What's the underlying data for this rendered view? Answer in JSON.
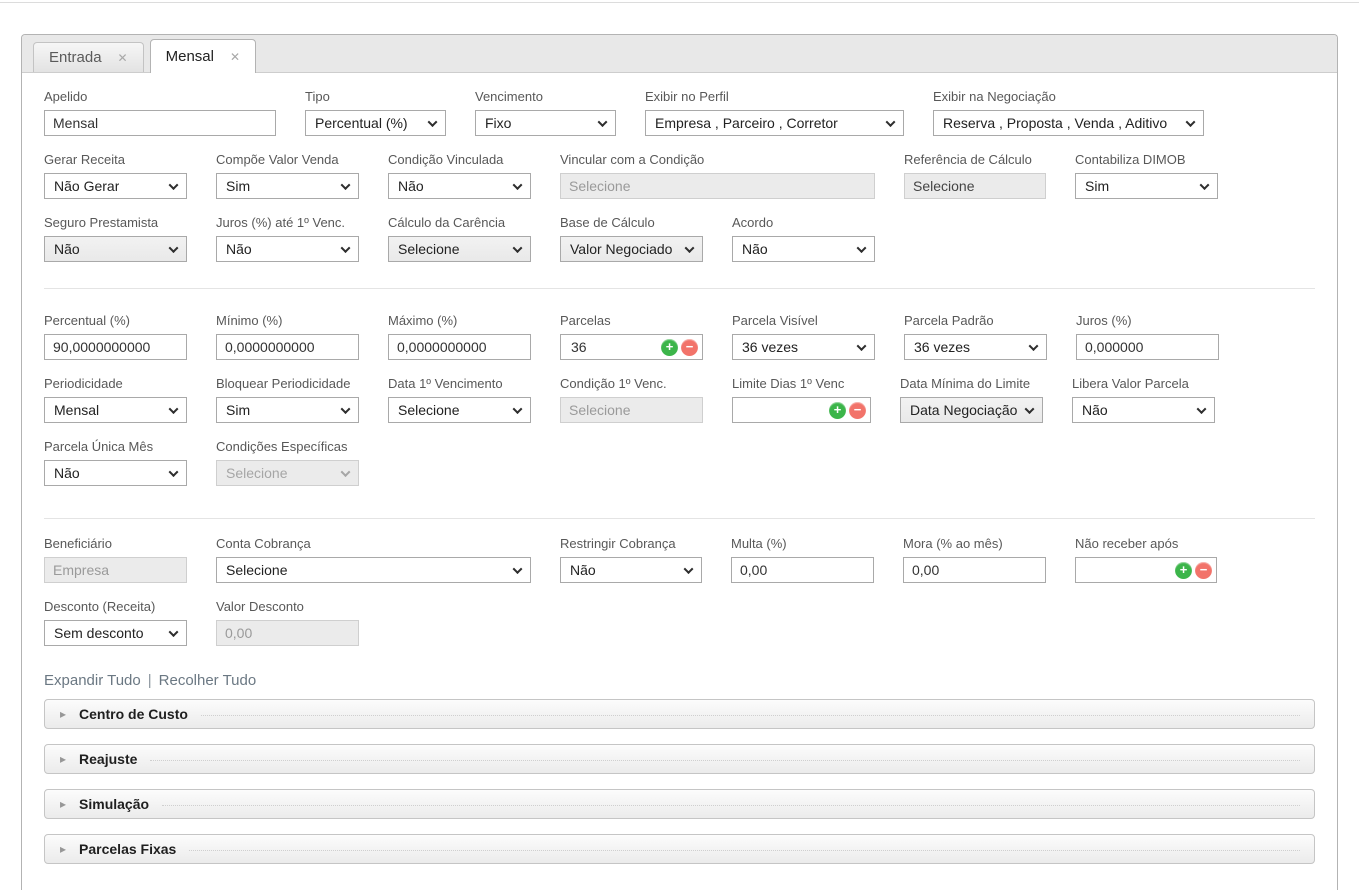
{
  "tabs": {
    "close_glyph": "✕",
    "items": [
      {
        "label": "Entrada"
      },
      {
        "label": "Mensal"
      }
    ]
  },
  "form": {
    "rows": [
      {
        "fields": [
          {
            "label": "Apelido",
            "value": "Mensal"
          },
          {
            "label": "Tipo",
            "value": "Percentual (%)"
          },
          {
            "label": "Vencimento",
            "value": "Fixo"
          },
          {
            "label": "Exibir no Perfil",
            "value": "Empresa , Parceiro , Corretor"
          },
          {
            "label": "Exibir na Negociação",
            "value": "Reserva , Proposta , Venda , Aditivo"
          }
        ]
      },
      {
        "fields": [
          {
            "label": "Gerar Receita",
            "value": "Não Gerar"
          },
          {
            "label": "Compõe Valor Venda",
            "value": "Sim"
          },
          {
            "label": "Condição Vinculada",
            "value": "Não"
          },
          {
            "label": "Vincular com a Condição",
            "value": "Selecione"
          },
          {
            "label": "Referência de Cálculo",
            "value": "Selecione"
          },
          {
            "label": "Contabiliza DIMOB",
            "value": "Sim"
          }
        ]
      },
      {
        "fields": [
          {
            "label": "Seguro Prestamista",
            "value": "Não"
          },
          {
            "label": "Juros (%) até 1º Venc.",
            "value": "Não"
          },
          {
            "label": "Cálculo da Carência",
            "value": "Selecione"
          },
          {
            "label": "Base de Cálculo",
            "value": "Valor Negociado"
          },
          {
            "label": "Acordo",
            "value": "Não"
          }
        ]
      },
      {
        "fields": [
          {
            "label": "Percentual (%)",
            "value": "90,0000000000"
          },
          {
            "label": "Mínimo (%)",
            "value": "0,0000000000"
          },
          {
            "label": "Máximo (%)",
            "value": "0,0000000000"
          },
          {
            "label": "Parcelas",
            "value": "36"
          },
          {
            "label": "Parcela Visível",
            "value": "36 vezes"
          },
          {
            "label": "Parcela Padrão",
            "value": "36 vezes"
          },
          {
            "label": "Juros (%)",
            "value": "0,000000"
          }
        ]
      },
      {
        "fields": [
          {
            "label": "Periodicidade",
            "value": "Mensal"
          },
          {
            "label": "Bloquear Periodicidade",
            "value": "Sim"
          },
          {
            "label": "Data 1º Vencimento",
            "value": "Selecione"
          },
          {
            "label": "Condição 1º Venc.",
            "value": "Selecione"
          },
          {
            "label": "Limite Dias 1º Venc",
            "value": ""
          },
          {
            "label": "Data Mínima do Limite",
            "value": "Data Negociação"
          },
          {
            "label": "Libera Valor Parcela",
            "value": "Não"
          }
        ]
      },
      {
        "fields": [
          {
            "label": "Parcela Única Mês",
            "value": "Não"
          },
          {
            "label": "Condições Específicas",
            "value": "Selecione"
          }
        ]
      },
      {
        "fields": [
          {
            "label": "Beneficiário",
            "value": "Empresa"
          },
          {
            "label": "Conta Cobrança",
            "value": "Selecione"
          },
          {
            "label": "Restringir Cobrança",
            "value": "Não"
          },
          {
            "label": "Multa (%)",
            "value": "0,00"
          },
          {
            "label": "Mora (% ao mês)",
            "value": "0,00"
          },
          {
            "label": "Não receber após",
            "value": ""
          }
        ]
      },
      {
        "fields": [
          {
            "label": "Desconto (Receita)",
            "value": "Sem desconto"
          },
          {
            "label": "Valor Desconto",
            "value": "0,00"
          }
        ]
      }
    ]
  },
  "links": {
    "expand_all": "Expandir Tudo",
    "divider": "|",
    "collapse_all": "Recolher Tudo"
  },
  "accordions": {
    "arrow_glyph": "▸",
    "items": [
      {
        "title": "Centro de Custo"
      },
      {
        "title": "Reajuste"
      },
      {
        "title": "Simulação"
      },
      {
        "title": "Parcelas Fixas"
      }
    ]
  },
  "icons": {
    "add_glyph": "+",
    "remove_glyph": "−"
  },
  "colors": {
    "add_green": "#3cb54a",
    "remove_red": "#f2736a"
  }
}
